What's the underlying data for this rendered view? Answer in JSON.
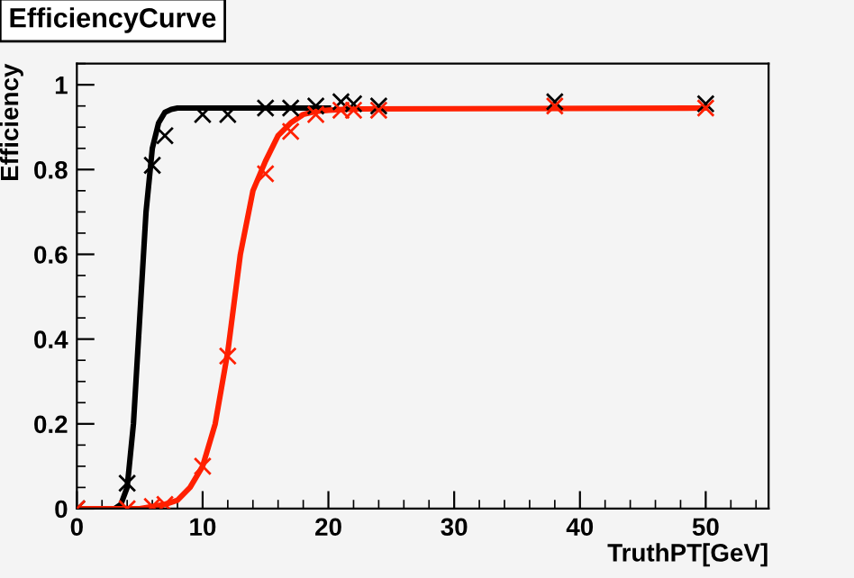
{
  "chart_data": {
    "type": "scatter",
    "title": "EfficiencyCurve",
    "xlabel": "TruthPT[GeV]",
    "ylabel": "Efficiency",
    "xlim": [
      0,
      55
    ],
    "ylim": [
      0,
      1.05
    ],
    "xticks": [
      0,
      10,
      20,
      30,
      40,
      50
    ],
    "yticks": [
      0,
      0.2,
      0.4,
      0.6,
      0.8,
      1
    ],
    "grid": false,
    "legend": false,
    "series": [
      {
        "type": "line",
        "marker": "none",
        "color": "#000000",
        "x": [
          0,
          3,
          3.5,
          4,
          4.5,
          5,
          5.5,
          6,
          6.5,
          7,
          7.5,
          8,
          9,
          12,
          20
        ],
        "values": [
          0,
          0,
          0.01,
          0.05,
          0.2,
          0.45,
          0.7,
          0.85,
          0.91,
          0.935,
          0.942,
          0.945,
          0.945,
          0.945,
          0.945
        ]
      },
      {
        "type": "line",
        "marker": "none",
        "color": "#ff2000",
        "x": [
          0,
          5,
          7,
          8,
          9,
          10,
          11,
          12,
          13,
          14,
          15,
          16,
          17,
          18,
          19,
          20,
          22,
          50
        ],
        "values": [
          0,
          0,
          0.01,
          0.02,
          0.05,
          0.1,
          0.2,
          0.37,
          0.6,
          0.75,
          0.82,
          0.88,
          0.91,
          0.93,
          0.937,
          0.94,
          0.943,
          0.945
        ]
      },
      {
        "marker": "cross",
        "color": "#000000",
        "x": [
          0,
          4,
          6,
          7,
          10,
          12,
          15,
          17,
          19,
          21,
          22,
          24,
          38,
          50
        ],
        "values": [
          0,
          0.06,
          0.81,
          0.88,
          0.93,
          0.93,
          0.945,
          0.945,
          0.95,
          0.96,
          0.955,
          0.95,
          0.96,
          0.955
        ]
      },
      {
        "marker": "cross",
        "color": "#ff2000",
        "x": [
          0,
          4,
          6,
          7,
          10,
          12,
          15,
          17,
          19,
          21,
          22,
          24,
          38,
          50
        ],
        "values": [
          0,
          0,
          0.005,
          0.01,
          0.1,
          0.36,
          0.79,
          0.89,
          0.93,
          0.94,
          0.94,
          0.94,
          0.95,
          0.945
        ]
      }
    ]
  }
}
